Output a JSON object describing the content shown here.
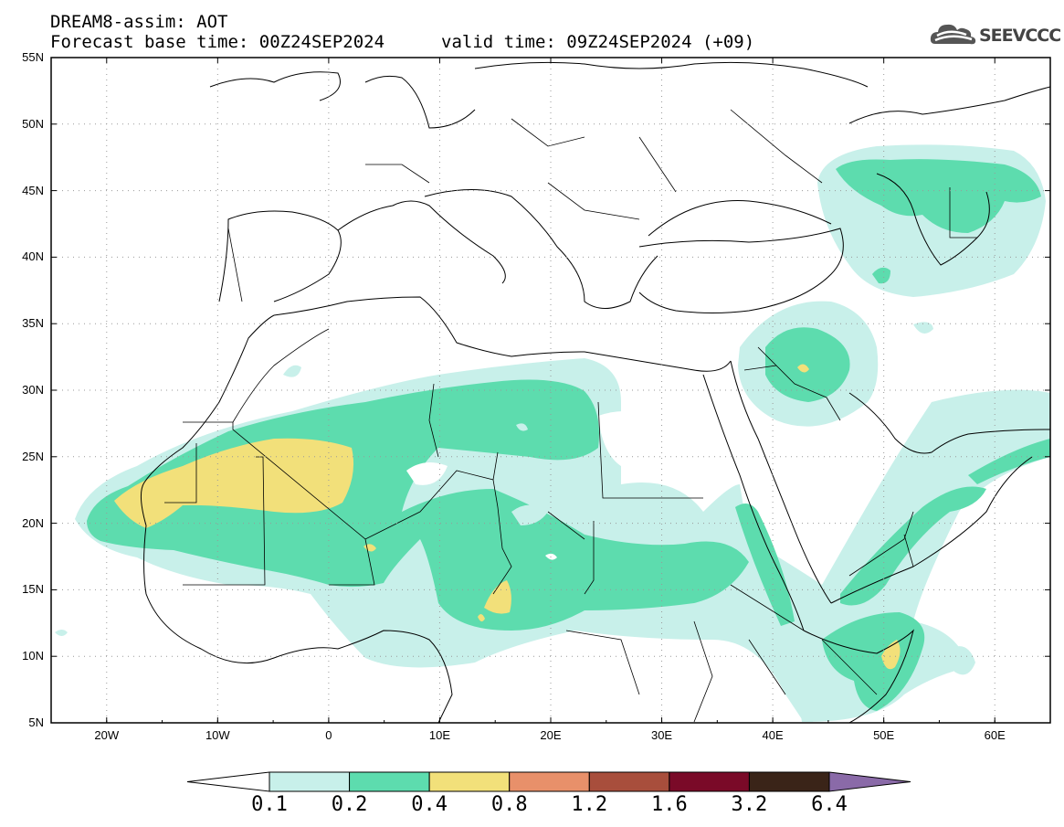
{
  "header": {
    "title": "DREAM8-assim: AOT",
    "base_time": "Forecast base time: 00Z24SEP2024",
    "valid_time": "valid time: 09Z24SEP2024 (+09)"
  },
  "logo": {
    "text": "SEEVCCC",
    "icon": "cloud-icon"
  },
  "map": {
    "projection": "lat-lon",
    "lon_range": [
      -25,
      65
    ],
    "lat_range": [
      5,
      55
    ],
    "lat_labels": [
      "55N",
      "50N",
      "45N",
      "40N",
      "35N",
      "30N",
      "25N",
      "20N",
      "15N",
      "10N",
      "5N"
    ],
    "lon_labels": [
      "20W",
      "10W",
      "0",
      "10E",
      "20E",
      "30E",
      "40E",
      "50E",
      "60E"
    ],
    "grid": "dotted"
  },
  "colorbar": {
    "levels": [
      "0.1",
      "0.2",
      "0.4",
      "0.8",
      "1.2",
      "1.6",
      "3.2",
      "6.4"
    ],
    "colors": [
      "#c8f0ea",
      "#5ddcae",
      "#f2e07a",
      "#e8906a",
      "#a84e3c",
      "#7a0a28",
      "#3a2418",
      "#8a6aa8"
    ]
  }
}
